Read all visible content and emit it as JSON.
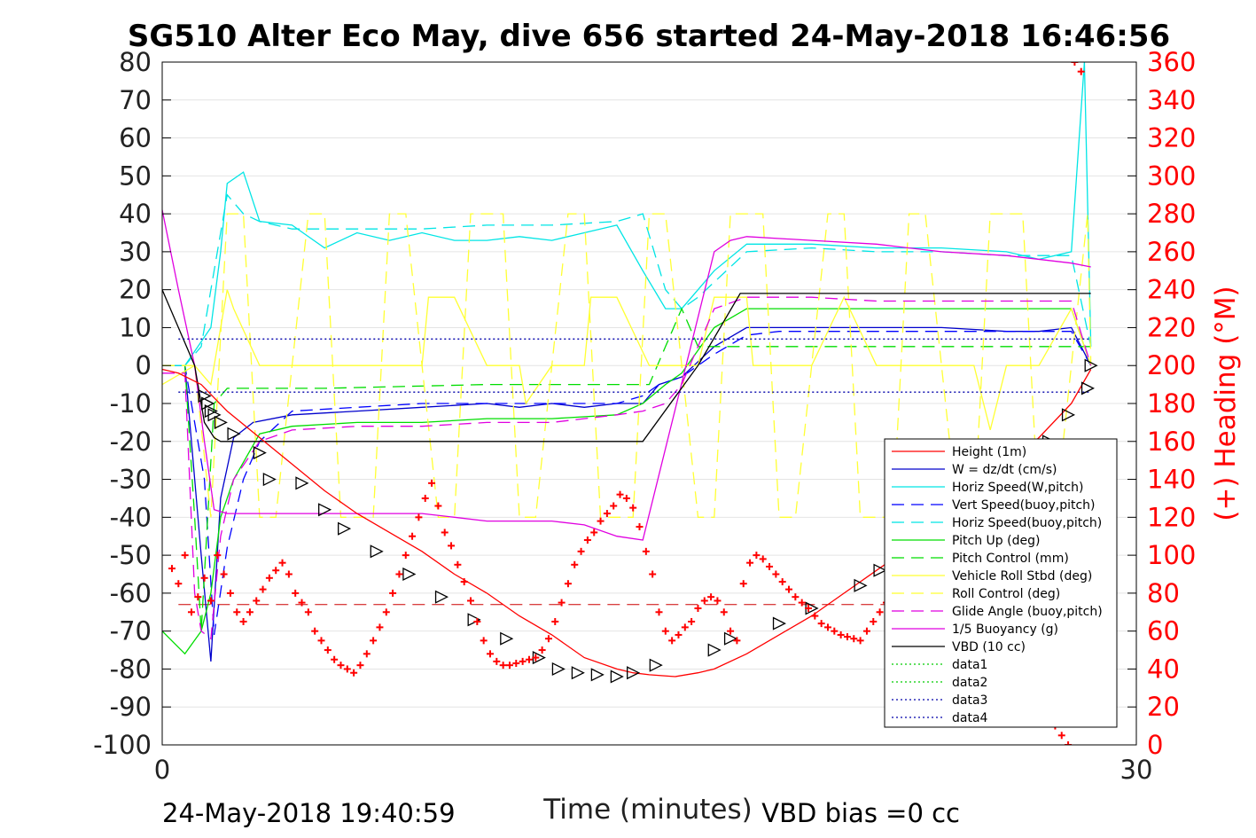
{
  "chart_data": {
    "type": "line",
    "title": "SG510 Alter Eco May, dive 656 started 24-May-2018 16:46:56",
    "xlabel": "Time (minutes)",
    "ylabel": "",
    "y2label": "(+) Heading (°M)",
    "xlim": [
      0,
      30
    ],
    "ylim": [
      -100,
      80
    ],
    "y2lim": [
      0,
      360
    ],
    "xticks": [
      "0",
      "30"
    ],
    "yticks": [
      "80",
      "70",
      "60",
      "50",
      "40",
      "30",
      "20",
      "10",
      "0",
      "-10",
      "-20",
      "-30",
      "-40",
      "-50",
      "-60",
      "-70",
      "-80",
      "-90",
      "-100"
    ],
    "y2ticks": [
      "360",
      "340",
      "320",
      "300",
      "280",
      "260",
      "240",
      "220",
      "200",
      "180",
      "160",
      "140",
      "120",
      "100",
      "80",
      "60",
      "40",
      "20",
      "0"
    ],
    "grid": true,
    "legend_position": "bottom-right",
    "footer_left": "24-May-2018 19:40:59",
    "footer_right": "VBD bias =0 cc",
    "colors": {
      "height": "#ff0000",
      "w": "#0000cc",
      "horiz_w": "#00e5e5",
      "vert_buoy": "#0000ff",
      "horiz_buoy": "#00e5e5",
      "pitch": "#00dd00",
      "pitch_ctrl": "#00dd00",
      "roll": "#ffff33",
      "roll_ctrl": "#ffff33",
      "glide": "#e000e0",
      "buoyancy": "#e000e0",
      "vbd": "#000000",
      "heading": "#ff0000"
    },
    "series": [
      {
        "name": "Height (1m)",
        "x": [
          0,
          0.5,
          1.2,
          2,
          3,
          4,
          5,
          6,
          7,
          8,
          9,
          10,
          11,
          12,
          13,
          14,
          14.5,
          15,
          15.8,
          16.5,
          17,
          18,
          19,
          20,
          21,
          22,
          23,
          24,
          25,
          26,
          27,
          28,
          28.6
        ],
        "y": [
          -1,
          -2,
          -5,
          -12,
          -19,
          -26,
          -33,
          -39,
          -44,
          -49,
          -55,
          -60,
          -66,
          -71,
          -77,
          -80,
          -81,
          -81.5,
          -82,
          -81,
          -80,
          -76,
          -71,
          -66,
          -60,
          -54,
          -48,
          -42,
          -35,
          -27,
          -19,
          -10,
          -1
        ]
      },
      {
        "name": "W = dz/dt (cm/s)",
        "x": [
          0,
          0.7,
          1.2,
          1.5,
          1.8,
          2.2,
          2.8,
          4,
          6,
          8,
          10,
          11,
          12,
          13,
          14,
          14.8,
          15.3,
          16,
          17,
          18,
          19,
          20,
          22,
          24,
          26,
          27,
          28,
          28.6
        ],
        "y": [
          0,
          0,
          -50,
          -78,
          -35,
          -19,
          -15,
          -13,
          -12,
          -11,
          -10,
          -11,
          -10,
          -11,
          -10,
          -10,
          -5,
          -3,
          5,
          10,
          10,
          10,
          10,
          10,
          9,
          9,
          10,
          0
        ]
      },
      {
        "name": "Horiz Speed(W,pitch)",
        "x": [
          0,
          0.7,
          1.5,
          1.8,
          2,
          2.5,
          3,
          4,
          5,
          6,
          7,
          8,
          9,
          10,
          11,
          12,
          13,
          14,
          14.8,
          15.5,
          16,
          16.5,
          17,
          18,
          19,
          20,
          22,
          24,
          26,
          27,
          28,
          28.4,
          28.6
        ],
        "y": [
          0,
          0,
          10,
          30,
          48,
          51,
          38,
          37,
          31,
          35,
          33,
          35,
          33,
          33,
          34,
          33,
          35,
          37,
          25,
          15,
          15,
          20,
          25,
          32,
          32,
          32,
          31,
          31,
          30,
          28,
          30,
          80,
          5
        ]
      },
      {
        "name": "Vert Speed(buoy,pitch)",
        "x": [
          0,
          0.7,
          1.3,
          1.6,
          2,
          2.5,
          3,
          4,
          6,
          8,
          10,
          12,
          14,
          14.8,
          15.3,
          16,
          17,
          18,
          19,
          20,
          22,
          24,
          26,
          28,
          28.6
        ],
        "y": [
          0,
          0,
          -30,
          -71,
          -48,
          -30,
          -20,
          -12,
          -11,
          -10,
          -10,
          -10,
          -10,
          -8,
          -5,
          -3,
          3,
          8,
          9,
          9,
          9,
          9,
          9,
          9,
          0
        ]
      },
      {
        "name": "Horiz Speed(buoy,pitch)",
        "x": [
          0,
          0.7,
          1.2,
          1.5,
          1.8,
          2,
          2.5,
          3,
          4,
          6,
          8,
          10,
          12,
          14,
          14.8,
          15.5,
          16,
          16.5,
          17,
          18,
          20,
          22,
          24,
          26,
          28,
          28.6
        ],
        "y": [
          0,
          0,
          5,
          20,
          35,
          45,
          40,
          38,
          36,
          36,
          36,
          37,
          37,
          38,
          40,
          20,
          15,
          18,
          22,
          30,
          31,
          30,
          30,
          29,
          29,
          5
        ]
      },
      {
        "name": "Pitch Up (deg)",
        "x": [
          0,
          0.7,
          1.2,
          1.5,
          1.8,
          2.2,
          3,
          4,
          6,
          8,
          10,
          12,
          14,
          14.8,
          15.5,
          16,
          17,
          18,
          20,
          22,
          24,
          26,
          28,
          28.6
        ],
        "y": [
          -70,
          -76,
          -70,
          -60,
          -40,
          -30,
          -18,
          -16,
          -15,
          -15,
          -14,
          -14,
          -13,
          -10,
          -5,
          -2,
          10,
          15,
          15,
          15,
          15,
          15,
          15,
          0
        ]
      },
      {
        "name": "Pitch Control (mm)",
        "x": [
          0,
          0.7,
          1,
          1.2,
          1.4,
          1.6,
          2,
          3,
          5,
          10,
          14.8,
          15,
          15.5,
          16,
          16.5,
          17,
          20,
          25,
          28.6
        ],
        "y": [
          0,
          0,
          -40,
          -70,
          -40,
          -10,
          -6,
          -6,
          -6,
          -5,
          -5,
          -5,
          5,
          15,
          5,
          5,
          5,
          5,
          5
        ]
      },
      {
        "name": "Vehicle Roll Stbd (deg)",
        "x": [
          0,
          1,
          1.5,
          2,
          2.2,
          3,
          3.2,
          4,
          5,
          6,
          7,
          8,
          8.2,
          9,
          10,
          11,
          11.2,
          12,
          13,
          13.2,
          14,
          15,
          16,
          16.5,
          17,
          18,
          18.2,
          19,
          20,
          21,
          22,
          23,
          24,
          25,
          25.5,
          26,
          27,
          28,
          28.6
        ],
        "y": [
          -5,
          0,
          -5,
          20,
          15,
          0,
          0,
          0,
          0,
          0,
          0,
          0,
          18,
          18,
          0,
          0,
          -10,
          0,
          0,
          18,
          18,
          0,
          0,
          0,
          18,
          18,
          0,
          0,
          0,
          18,
          0,
          0,
          0,
          0,
          -17,
          0,
          0,
          15,
          0
        ]
      },
      {
        "name": "Roll Control (deg)",
        "x": [
          0,
          1,
          1.5,
          2,
          2.5,
          3,
          3.5,
          4.5,
          5,
          5.5,
          6.5,
          7,
          7.5,
          8.5,
          9,
          9.5,
          10.5,
          11,
          11.5,
          12.5,
          13,
          13.5,
          14.5,
          15,
          15.5,
          16.5,
          17,
          17.5,
          18.5,
          19,
          19.5,
          20.5,
          21,
          21.5,
          22.5,
          23,
          23.5,
          24.5,
          25,
          25.5,
          26.5,
          27,
          27.5,
          28.5,
          28.6
        ],
        "y": [
          0,
          0,
          -40,
          40,
          40,
          -40,
          -40,
          40,
          40,
          -40,
          -40,
          40,
          40,
          -40,
          -40,
          40,
          40,
          -40,
          -40,
          40,
          40,
          -40,
          -40,
          40,
          40,
          -40,
          -40,
          40,
          40,
          -40,
          -40,
          40,
          40,
          -40,
          -40,
          40,
          40,
          -40,
          -40,
          40,
          40,
          -40,
          -40,
          40,
          0
        ]
      },
      {
        "name": "Glide Angle (buoy,pitch)",
        "x": [
          0,
          0.7,
          1,
          1.2,
          1.5,
          1.8,
          2.2,
          3,
          4,
          6,
          8,
          10,
          12,
          14,
          14.8,
          15.5,
          16,
          17,
          18,
          20,
          22,
          24,
          26,
          28,
          28.6
        ],
        "y": [
          -2,
          -2,
          -60,
          -70,
          -72,
          -45,
          -30,
          -20,
          -17,
          -16,
          -16,
          -15,
          -15,
          -13,
          -12,
          -10,
          -5,
          15,
          18,
          18,
          17,
          17,
          17,
          17,
          0
        ]
      },
      {
        "name": "1/5 Buoyancy (g)",
        "x": [
          0,
          0.5,
          1,
          1.3,
          1.6,
          2,
          3,
          5,
          7,
          8,
          9,
          10,
          12,
          13,
          14,
          14.8,
          17,
          17.5,
          18,
          20,
          22,
          24,
          26,
          28,
          28.6
        ],
        "y": [
          41,
          20,
          0,
          -20,
          -38,
          -39,
          -39,
          -39,
          -39,
          -39,
          -40,
          -41,
          -41,
          -42,
          -45,
          -46,
          30,
          33,
          34,
          33,
          32,
          30,
          29,
          27,
          26
        ]
      },
      {
        "name": "VBD (10 cc)",
        "x": [
          0,
          1,
          1.3,
          1.6,
          1.8,
          2.5,
          5,
          10,
          14.8,
          16.5,
          17.8,
          19,
          22,
          25,
          28.6
        ],
        "y": [
          20,
          0,
          -15,
          -19,
          -20,
          -20,
          -20,
          -20,
          -20,
          0,
          19,
          19,
          19,
          19,
          19
        ]
      },
      {
        "name": "data1",
        "x": [],
        "y": []
      },
      {
        "name": "data2",
        "x": [],
        "y": []
      },
      {
        "name": "data3",
        "x": [
          0.5,
          28.6
        ],
        "y": [
          7,
          7
        ]
      },
      {
        "name": "data4",
        "x": [
          0.5,
          28.6
        ],
        "y": [
          -7,
          -7
        ]
      }
    ],
    "reference_line": {
      "y": -63,
      "x_start": 0.5,
      "x_end": 28.6
    },
    "triangle_markers": {
      "x": [
        1.3,
        1.4,
        1.5,
        1.6,
        1.8,
        2.2,
        3.0,
        3.3,
        4.3,
        5.0,
        5.6,
        6.6,
        7.6,
        8.6,
        9.6,
        10.6,
        11.6,
        12.2,
        12.8,
        13.4,
        14,
        14.5,
        15.2,
        17.0,
        17.5,
        19,
        20,
        21.5,
        22.1,
        22.5,
        23.5,
        24.4,
        25.3,
        25.9,
        26.5,
        27.0,
        27.3,
        27.9,
        28.5,
        28.6
      ],
      "y": [
        -8,
        -10,
        -12,
        -13,
        -15,
        -18,
        -23,
        -30,
        -31,
        -38,
        -43,
        -49,
        -55,
        -61,
        -67,
        -72,
        -77,
        -80,
        -81,
        -81.5,
        -82,
        -81,
        -79,
        -75,
        -72,
        -68,
        -64,
        -58,
        -54,
        -52,
        -47,
        -42,
        -37,
        -34,
        -31,
        -25,
        -20,
        -13,
        -6,
        0
      ]
    },
    "heading": {
      "x": [
        0.3,
        0.5,
        0.7,
        0.9,
        1.1,
        1.3,
        1.5,
        1.7,
        1.9,
        2.1,
        2.3,
        2.5,
        2.7,
        2.9,
        3.1,
        3.3,
        3.5,
        3.7,
        3.9,
        4.1,
        4.3,
        4.5,
        4.7,
        4.9,
        5.1,
        5.3,
        5.5,
        5.7,
        5.9,
        6.1,
        6.3,
        6.5,
        6.7,
        6.9,
        7.1,
        7.3,
        7.5,
        7.7,
        7.9,
        8.1,
        8.3,
        8.5,
        8.7,
        8.9,
        9.1,
        9.3,
        9.5,
        9.7,
        9.9,
        10.1,
        10.3,
        10.5,
        10.7,
        10.9,
        11.1,
        11.3,
        11.5,
        11.7,
        11.9,
        12.1,
        12.3,
        12.5,
        12.7,
        12.9,
        13.1,
        13.3,
        13.5,
        13.7,
        13.9,
        14.1,
        14.3,
        14.5,
        14.7,
        14.9,
        15.1,
        15.3,
        15.5,
        15.7,
        15.9,
        16.1,
        16.3,
        16.5,
        16.7,
        16.9,
        17.1,
        17.3,
        17.5,
        17.7,
        17.9,
        18.1,
        18.3,
        18.5,
        18.7,
        18.9,
        19.1,
        19.3,
        19.5,
        19.7,
        19.9,
        20.1,
        20.3,
        20.5,
        20.7,
        20.9,
        21.1,
        21.3,
        21.5,
        21.7,
        21.9,
        22.1,
        22.3,
        22.5,
        22.7,
        22.9,
        23.1,
        23.3,
        23.5,
        23.7,
        23.9,
        24.1,
        24.3,
        24.5,
        24.7,
        24.9,
        25.1,
        25.3,
        25.5,
        25.7,
        25.9,
        26.1,
        26.3,
        26.5,
        26.7,
        26.9,
        27.1,
        27.3,
        27.5,
        27.7,
        27.9,
        28.1,
        28.3
      ],
      "y": [
        93,
        85,
        100,
        70,
        78,
        88,
        76,
        100,
        90,
        80,
        70,
        65,
        70,
        76,
        82,
        88,
        92,
        96,
        90,
        80,
        75,
        70,
        60,
        55,
        50,
        45,
        42,
        40,
        38,
        42,
        48,
        55,
        62,
        70,
        80,
        90,
        100,
        110,
        120,
        130,
        138,
        126,
        112,
        105,
        95,
        86,
        76,
        65,
        55,
        48,
        44,
        42,
        42,
        43,
        44,
        45,
        46,
        50,
        56,
        65,
        75,
        85,
        95,
        102,
        108,
        112,
        118,
        122,
        126,
        132,
        130,
        125,
        115,
        102,
        90,
        70,
        60,
        55,
        58,
        62,
        65,
        72,
        76,
        78,
        76,
        70,
        60,
        55,
        85,
        96,
        100,
        98,
        94,
        90,
        86,
        82,
        78,
        75,
        72,
        68,
        64,
        62,
        60,
        58,
        57,
        56,
        55,
        60,
        65,
        70,
        75,
        80,
        85,
        90,
        80,
        74,
        70,
        66,
        62,
        60,
        75,
        86,
        90,
        95,
        98,
        100,
        102,
        104,
        105,
        80,
        70,
        60,
        50,
        40,
        30,
        20,
        10,
        5,
        0,
        360,
        355
      ]
    }
  }
}
